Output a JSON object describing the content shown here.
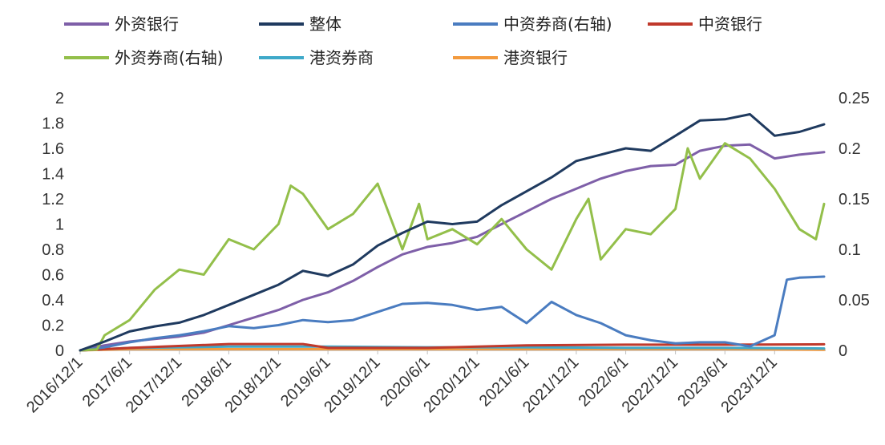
{
  "chart_data": {
    "type": "line",
    "title": "",
    "xlabel": "",
    "ylabel": "",
    "y2label": "",
    "x_ticks": [
      "2016/12/1",
      "2017/6/1",
      "2017/12/1",
      "2018/6/1",
      "2018/12/1",
      "2019/6/1",
      "2019/12/1",
      "2020/6/1",
      "2020/12/1",
      "2021/6/1",
      "2021/12/1",
      "2022/6/1",
      "2022/12/1",
      "2023/6/1",
      "2023/12/1"
    ],
    "xlim": [
      "2016/12/1",
      "2024/5/31"
    ],
    "ylim": [
      0,
      2
    ],
    "y_ticks": [
      "0",
      "0.2",
      "0.4",
      "0.6",
      "0.8",
      "1",
      "1.2",
      "1.4",
      "1.6",
      "1.8",
      "2"
    ],
    "y2lim": [
      0,
      0.25
    ],
    "y2_ticks": [
      "0",
      "0.05",
      "0.1",
      "0.15",
      "0.2",
      "0.25"
    ],
    "grid": false,
    "legend_position": "top",
    "series": [
      {
        "name": "外资银行",
        "axis": "left",
        "color": "#7E5FA8",
        "points": [
          [
            "2016/12/1",
            0.0
          ],
          [
            "2017/3/1",
            0.04
          ],
          [
            "2017/6/1",
            0.07
          ],
          [
            "2017/9/1",
            0.09
          ],
          [
            "2017/12/1",
            0.11
          ],
          [
            "2018/3/1",
            0.14
          ],
          [
            "2018/6/1",
            0.2
          ],
          [
            "2018/9/1",
            0.26
          ],
          [
            "2018/12/1",
            0.32
          ],
          [
            "2019/3/1",
            0.4
          ],
          [
            "2019/6/1",
            0.46
          ],
          [
            "2019/9/1",
            0.55
          ],
          [
            "2019/12/1",
            0.66
          ],
          [
            "2020/3/1",
            0.76
          ],
          [
            "2020/6/1",
            0.82
          ],
          [
            "2020/9/1",
            0.85
          ],
          [
            "2020/12/1",
            0.9
          ],
          [
            "2021/3/1",
            1.0
          ],
          [
            "2021/6/1",
            1.1
          ],
          [
            "2021/9/1",
            1.2
          ],
          [
            "2021/12/1",
            1.28
          ],
          [
            "2022/3/1",
            1.36
          ],
          [
            "2022/6/1",
            1.42
          ],
          [
            "2022/9/1",
            1.46
          ],
          [
            "2022/12/1",
            1.47
          ],
          [
            "2023/3/1",
            1.58
          ],
          [
            "2023/6/1",
            1.62
          ],
          [
            "2023/9/1",
            1.63
          ],
          [
            "2023/12/1",
            1.52
          ],
          [
            "2024/3/1",
            1.55
          ],
          [
            "2024/5/31",
            1.57
          ]
        ]
      },
      {
        "name": "整体",
        "axis": "left",
        "color": "#1F3A5F",
        "points": [
          [
            "2016/12/1",
            0.0
          ],
          [
            "2017/3/1",
            0.07
          ],
          [
            "2017/6/1",
            0.15
          ],
          [
            "2017/9/1",
            0.19
          ],
          [
            "2017/12/1",
            0.22
          ],
          [
            "2018/3/1",
            0.28
          ],
          [
            "2018/6/1",
            0.36
          ],
          [
            "2018/9/1",
            0.44
          ],
          [
            "2018/12/1",
            0.52
          ],
          [
            "2019/3/1",
            0.63
          ],
          [
            "2019/6/1",
            0.59
          ],
          [
            "2019/9/1",
            0.68
          ],
          [
            "2019/12/1",
            0.83
          ],
          [
            "2020/3/1",
            0.93
          ],
          [
            "2020/6/1",
            1.02
          ],
          [
            "2020/9/1",
            1.0
          ],
          [
            "2020/12/1",
            1.02
          ],
          [
            "2021/3/1",
            1.15
          ],
          [
            "2021/6/1",
            1.26
          ],
          [
            "2021/9/1",
            1.37
          ],
          [
            "2021/12/1",
            1.5
          ],
          [
            "2022/3/1",
            1.55
          ],
          [
            "2022/6/1",
            1.6
          ],
          [
            "2022/9/1",
            1.58
          ],
          [
            "2022/12/1",
            1.7
          ],
          [
            "2023/3/1",
            1.82
          ],
          [
            "2023/6/1",
            1.83
          ],
          [
            "2023/9/1",
            1.87
          ],
          [
            "2023/12/1",
            1.7
          ],
          [
            "2024/3/1",
            1.73
          ],
          [
            "2024/5/31",
            1.79
          ]
        ]
      },
      {
        "name": "中资券商(右轴)",
        "axis": "right",
        "color": "#4A7CC0",
        "points": [
          [
            "2016/12/1",
            0.0
          ],
          [
            "2017/3/1",
            0.003
          ],
          [
            "2017/6/1",
            0.008
          ],
          [
            "2017/9/1",
            0.012
          ],
          [
            "2017/12/1",
            0.015
          ],
          [
            "2018/3/1",
            0.019
          ],
          [
            "2018/6/1",
            0.024
          ],
          [
            "2018/9/1",
            0.022
          ],
          [
            "2018/12/1",
            0.025
          ],
          [
            "2019/3/1",
            0.03
          ],
          [
            "2019/6/1",
            0.028
          ],
          [
            "2019/9/1",
            0.03
          ],
          [
            "2019/12/1",
            0.038
          ],
          [
            "2020/3/1",
            0.046
          ],
          [
            "2020/6/1",
            0.047
          ],
          [
            "2020/9/1",
            0.045
          ],
          [
            "2020/12/1",
            0.04
          ],
          [
            "2021/3/1",
            0.043
          ],
          [
            "2021/6/1",
            0.027
          ],
          [
            "2021/9/1",
            0.048
          ],
          [
            "2021/12/1",
            0.035
          ],
          [
            "2022/3/1",
            0.027
          ],
          [
            "2022/6/1",
            0.015
          ],
          [
            "2022/9/1",
            0.01
          ],
          [
            "2022/12/1",
            0.007
          ],
          [
            "2023/3/1",
            0.008
          ],
          [
            "2023/6/1",
            0.008
          ],
          [
            "2023/9/1",
            0.004
          ],
          [
            "2023/12/1",
            0.015
          ],
          [
            "2024/1/15",
            0.07
          ],
          [
            "2024/3/1",
            0.072
          ],
          [
            "2024/5/31",
            0.073
          ]
        ]
      },
      {
        "name": "中资银行",
        "axis": "left",
        "color": "#C0392B",
        "points": [
          [
            "2016/12/1",
            0.0
          ],
          [
            "2017/6/1",
            0.02
          ],
          [
            "2018/6/1",
            0.05
          ],
          [
            "2019/3/1",
            0.05
          ],
          [
            "2019/6/1",
            0.02
          ],
          [
            "2020/6/1",
            0.02
          ],
          [
            "2021/6/1",
            0.04
          ],
          [
            "2022/6/1",
            0.045
          ],
          [
            "2023/6/1",
            0.045
          ],
          [
            "2024/5/31",
            0.048
          ]
        ]
      },
      {
        "name": "外资券商(右轴)",
        "axis": "right",
        "color": "#93BF4A",
        "points": [
          [
            "2016/12/1",
            0.0
          ],
          [
            "2017/2/1",
            0.001
          ],
          [
            "2017/3/1",
            0.015
          ],
          [
            "2017/6/1",
            0.03
          ],
          [
            "2017/9/1",
            0.06
          ],
          [
            "2017/12/1",
            0.08
          ],
          [
            "2018/3/1",
            0.075
          ],
          [
            "2018/6/1",
            0.11
          ],
          [
            "2018/9/1",
            0.1
          ],
          [
            "2018/12/1",
            0.125
          ],
          [
            "2019/1/15",
            0.163
          ],
          [
            "2019/3/1",
            0.155
          ],
          [
            "2019/6/1",
            0.12
          ],
          [
            "2019/9/1",
            0.135
          ],
          [
            "2019/12/1",
            0.165
          ],
          [
            "2020/3/1",
            0.1
          ],
          [
            "2020/5/1",
            0.145
          ],
          [
            "2020/6/1",
            0.11
          ],
          [
            "2020/9/1",
            0.12
          ],
          [
            "2020/12/1",
            0.105
          ],
          [
            "2021/3/1",
            0.13
          ],
          [
            "2021/6/1",
            0.1
          ],
          [
            "2021/9/1",
            0.08
          ],
          [
            "2021/12/1",
            0.13
          ],
          [
            "2022/1/15",
            0.15
          ],
          [
            "2022/3/1",
            0.09
          ],
          [
            "2022/6/1",
            0.12
          ],
          [
            "2022/9/1",
            0.115
          ],
          [
            "2022/12/1",
            0.14
          ],
          [
            "2023/1/15",
            0.2
          ],
          [
            "2023/3/1",
            0.17
          ],
          [
            "2023/6/1",
            0.205
          ],
          [
            "2023/9/1",
            0.19
          ],
          [
            "2023/12/1",
            0.16
          ],
          [
            "2024/3/1",
            0.12
          ],
          [
            "2024/5/1",
            0.11
          ],
          [
            "2024/5/31",
            0.145
          ]
        ]
      },
      {
        "name": "港资券商",
        "axis": "left",
        "color": "#3FA9C9",
        "points": [
          [
            "2016/12/1",
            0.0
          ],
          [
            "2017/6/1",
            0.02
          ],
          [
            "2018/6/1",
            0.03
          ],
          [
            "2019/6/1",
            0.03
          ],
          [
            "2020/6/1",
            0.025
          ],
          [
            "2021/6/1",
            0.025
          ],
          [
            "2022/6/1",
            0.02
          ],
          [
            "2023/6/1",
            0.02
          ],
          [
            "2024/5/31",
            0.015
          ]
        ]
      },
      {
        "name": "港资银行",
        "axis": "left",
        "color": "#F39A3D",
        "points": [
          [
            "2016/12/1",
            0.0
          ],
          [
            "2017/6/1",
            0.01
          ],
          [
            "2018/6/1",
            0.01
          ],
          [
            "2019/6/1",
            0.01
          ],
          [
            "2020/6/1",
            0.01
          ],
          [
            "2021/6/1",
            0.01
          ],
          [
            "2022/6/1",
            0.01
          ],
          [
            "2023/6/1",
            0.01
          ],
          [
            "2024/5/31",
            0.005
          ]
        ]
      }
    ]
  }
}
